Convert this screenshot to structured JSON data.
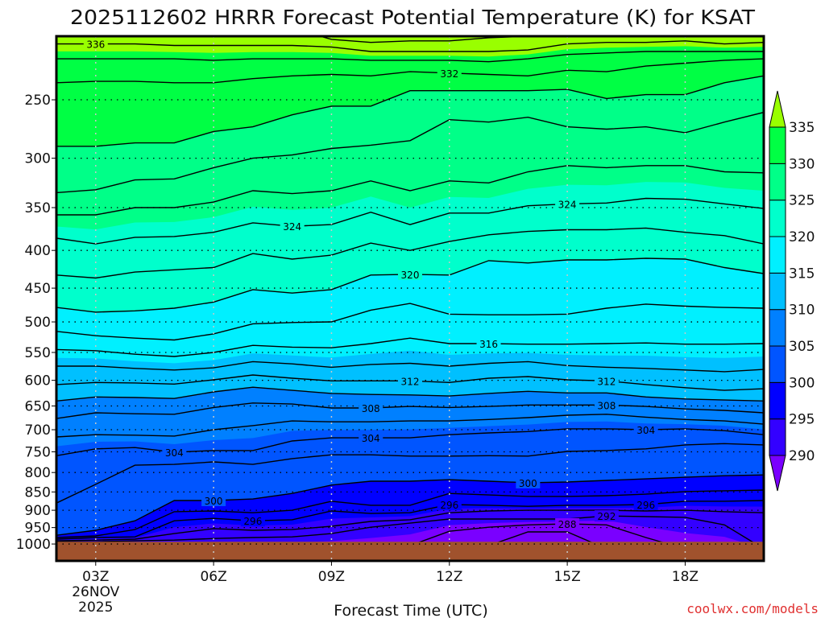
{
  "chart_data": {
    "type": "contour",
    "title": "2025112602 HRRR Forecast Potential Temperature (K) for KSAT",
    "xlabel": "Forecast Time (UTC)",
    "ylabel": "",
    "watermark": "coolwx.com/models",
    "xlim": [
      2,
      20
    ],
    "ylim": [
      205,
      1054
    ],
    "y_scale": "log",
    "grid": true,
    "surface_pressure": 993,
    "x_hours": [
      2,
      3,
      4,
      5,
      6,
      7,
      8,
      9,
      10,
      11,
      12,
      13,
      14,
      15,
      16,
      17,
      18,
      19,
      20
    ],
    "x_ticks": [
      {
        "hour": 3,
        "label": "03Z",
        "sublabels": [
          "26NOV",
          "2025"
        ]
      },
      {
        "hour": 6,
        "label": "06Z",
        "sublabels": []
      },
      {
        "hour": 9,
        "label": "09Z",
        "sublabels": []
      },
      {
        "hour": 12,
        "label": "12Z",
        "sublabels": []
      },
      {
        "hour": 15,
        "label": "15Z",
        "sublabels": []
      },
      {
        "hour": 18,
        "label": "18Z",
        "sublabels": []
      }
    ],
    "y_ticks": [
      250,
      300,
      350,
      400,
      450,
      500,
      550,
      600,
      650,
      700,
      750,
      800,
      850,
      900,
      950,
      1000
    ],
    "colorbar": {
      "levels": [
        290,
        295,
        300,
        305,
        310,
        315,
        320,
        325,
        330,
        335
      ],
      "colors": [
        "#7a00ff",
        "#3300ff",
        "#0000ff",
        "#0055ff",
        "#0080ff",
        "#00c0ff",
        "#00f0ff",
        "#00ffcc",
        "#00ff88",
        "#00ff44",
        "#99ff00"
      ],
      "placement": "right"
    },
    "contours": [
      {
        "theta": 286,
        "pressure": [
          1015,
          1015,
          1015,
          1015,
          1015,
          1015,
          1015,
          1015,
          1015,
          1015,
          1015,
          1005,
          963,
          963,
          1015,
          1015,
          1015,
          1015,
          1015
        ]
      },
      {
        "theta": 288,
        "pressure": [
          1015,
          1015,
          1015,
          1015,
          1015,
          1015,
          1015,
          1015,
          1015,
          1005,
          961,
          949,
          942,
          939,
          942,
          980,
          1015,
          1015,
          1015
        ]
      },
      {
        "theta": 292,
        "pressure": [
          993,
          993,
          990,
          988,
          983,
          980,
          978,
          968,
          949,
          937,
          925,
          925,
          925,
          925,
          916,
          918,
          920,
          942,
          1015
        ]
      },
      {
        "theta": 294,
        "pressure": [
          990,
          988,
          985,
          968,
          953,
          958,
          956,
          946,
          932,
          927,
          907,
          902,
          900,
          900,
          900,
          902,
          900,
          904,
          907
        ]
      },
      {
        "theta": 296,
        "pressure": [
          985,
          980,
          978,
          930,
          923,
          930,
          927,
          902,
          909,
          907,
          884,
          886,
          889,
          886,
          886,
          884,
          875,
          875,
          873
        ]
      },
      {
        "theta": 298,
        "pressure": [
          980,
          975,
          956,
          904,
          902,
          907,
          900,
          875,
          886,
          886,
          854,
          858,
          862,
          862,
          860,
          856,
          849,
          847,
          845
        ]
      },
      {
        "theta": 300,
        "pressure": [
          973,
          958,
          930,
          873,
          873,
          869,
          854,
          832,
          822,
          822,
          818,
          822,
          826,
          824,
          820,
          816,
          812,
          808,
          806
        ]
      },
      {
        "theta": 302,
        "pressure": [
          880,
          830,
          782,
          780,
          774,
          780,
          766,
          757,
          757,
          760,
          760,
          759,
          760,
          749,
          747,
          743,
          734,
          731,
          734
        ]
      },
      {
        "theta": 304,
        "pressure": [
          759,
          743,
          740,
          751,
          747,
          747,
          725,
          718,
          718,
          718,
          711,
          707,
          704,
          698,
          698,
          700,
          698,
          702,
          711
        ]
      },
      {
        "theta": 306,
        "pressure": [
          716,
          711,
          712,
          714,
          700,
          691,
          681,
          683,
          683,
          681,
          681,
          678,
          674,
          669,
          667,
          673,
          678,
          681,
          688
        ]
      },
      {
        "theta": 308,
        "pressure": [
          676,
          664,
          666,
          667,
          653,
          644,
          646,
          654,
          654,
          651,
          653,
          651,
          648,
          648,
          648,
          651,
          656,
          659,
          664
        ]
      },
      {
        "theta": 310,
        "pressure": [
          640,
          632,
          633,
          635,
          622,
          613,
          619,
          625,
          627,
          628,
          630,
          625,
          621,
          624,
          624,
          632,
          636,
          638,
          640
        ]
      },
      {
        "theta": 312,
        "pressure": [
          608,
          604,
          605,
          607,
          599,
          590,
          596,
          601,
          601,
          601,
          604,
          596,
          593,
          599,
          601,
          608,
          614,
          619,
          616
        ]
      },
      {
        "theta": 314,
        "pressure": [
          574,
          574,
          578,
          581,
          577,
          566,
          570,
          576,
          571,
          569,
          574,
          569,
          566,
          573,
          576,
          578,
          581,
          584,
          580
        ]
      },
      {
        "theta": 316,
        "pressure": [
          545,
          547,
          553,
          557,
          550,
          538,
          541,
          542,
          535,
          526,
          535,
          535,
          536,
          536,
          535,
          534,
          536,
          536,
          535
        ]
      },
      {
        "theta": 318,
        "pressure": [
          515,
          522,
          526,
          529,
          519,
          503,
          501,
          500,
          482,
          472,
          488,
          489,
          489,
          488,
          479,
          473,
          476,
          478,
          479
        ]
      },
      {
        "theta": 320,
        "pressure": [
          478,
          485,
          483,
          479,
          470,
          452,
          457,
          452,
          432,
          431,
          432,
          413,
          416,
          412,
          412,
          410,
          411,
          422,
          430
        ]
      },
      {
        "theta": 322,
        "pressure": [
          432,
          436,
          428,
          425,
          422,
          404,
          411,
          406,
          391,
          400,
          389,
          381,
          377,
          375,
          375,
          373,
          378,
          382,
          392
        ]
      },
      {
        "theta": 324,
        "pressure": [
          385,
          392,
          384,
          383,
          378,
          367,
          371,
          369,
          355,
          369,
          356,
          356,
          348,
          346,
          345,
          340,
          341,
          346,
          351
        ]
      },
      {
        "theta": 326,
        "pressure": [
          358,
          358,
          350,
          350,
          344,
          332,
          335,
          332,
          322,
          332,
          322,
          324,
          313,
          307,
          309,
          307,
          307,
          313,
          314
        ]
      },
      {
        "theta": 328,
        "pressure": [
          334,
          331,
          321,
          320,
          309,
          300,
          297,
          291,
          288,
          284,
          266,
          268,
          264,
          272,
          274,
          272,
          277,
          268,
          260
        ]
      },
      {
        "theta": 330,
        "pressure": [
          289,
          289,
          286,
          286,
          276,
          272,
          262,
          255,
          255,
          243,
          243,
          243,
          243,
          242,
          249,
          246,
          246,
          237,
          232
        ]
      },
      {
        "theta": 332,
        "pressure": [
          237,
          236,
          236,
          237,
          237,
          234,
          232,
          231,
          232,
          229,
          230,
          231,
          232,
          228,
          229,
          225,
          223,
          221,
          220
        ]
      },
      {
        "theta": 334,
        "pressure": [
          220,
          220,
          220,
          220,
          221,
          220,
          220,
          220,
          221,
          221,
          221,
          222,
          220,
          217,
          216,
          215,
          215,
          215,
          215
        ]
      },
      {
        "theta": 336,
        "pressure": [
          210,
          210,
          210,
          211,
          211,
          211,
          211,
          212,
          215,
          215,
          215,
          215,
          214,
          210,
          209,
          209,
          208,
          210,
          209
        ]
      },
      {
        "theta": 338,
        "pressure": [
          200,
          200,
          200,
          200,
          200,
          200,
          200,
          207,
          209,
          208,
          208,
          206,
          205,
          200,
          200,
          200,
          200,
          200,
          200
        ]
      }
    ],
    "contour_labels": [
      {
        "theta": 336,
        "hour": 3
      },
      {
        "theta": 332,
        "hour": 12
      },
      {
        "theta": 324,
        "hour": 8
      },
      {
        "theta": 324,
        "hour": 15
      },
      {
        "theta": 320,
        "hour": 11
      },
      {
        "theta": 316,
        "hour": 13
      },
      {
        "theta": 312,
        "hour": 11
      },
      {
        "theta": 312,
        "hour": 16
      },
      {
        "theta": 308,
        "hour": 10
      },
      {
        "theta": 308,
        "hour": 16
      },
      {
        "theta": 304,
        "hour": 5
      },
      {
        "theta": 304,
        "hour": 10
      },
      {
        "theta": 304,
        "hour": 17
      },
      {
        "theta": 300,
        "hour": 6
      },
      {
        "theta": 300,
        "hour": 14
      },
      {
        "theta": 296,
        "hour": 7
      },
      {
        "theta": 296,
        "hour": 12
      },
      {
        "theta": 296,
        "hour": 17
      },
      {
        "theta": 292,
        "hour": 16
      },
      {
        "theta": 288,
        "hour": 15
      }
    ],
    "ground_color": "#a0522d"
  }
}
